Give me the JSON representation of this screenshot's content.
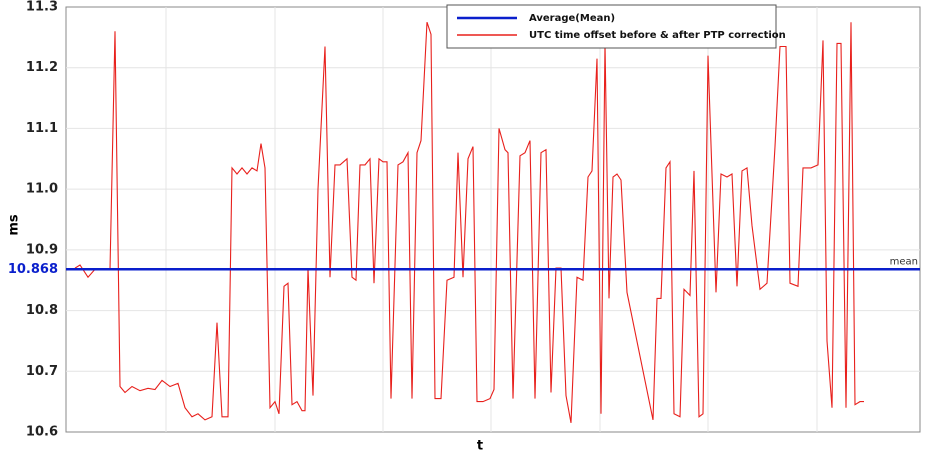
{
  "chart_data": {
    "type": "line",
    "xlabel": "t",
    "ylabel": "ms",
    "x": [
      9,
      14,
      22,
      29,
      44,
      49,
      54,
      59,
      66,
      74,
      82,
      89,
      96,
      104,
      112,
      119,
      126,
      132,
      139,
      146,
      151,
      156,
      162,
      166,
      171,
      176,
      181,
      186,
      191,
      195,
      199,
      204,
      209,
      213,
      218,
      222,
      226,
      231,
      236,
      239,
      242,
      247,
      252,
      259,
      264,
      269,
      274,
      281,
      286,
      290,
      294,
      299,
      304,
      308,
      313,
      317,
      321,
      325,
      332,
      337,
      342,
      346,
      351,
      355,
      361,
      365,
      369,
      375,
      381,
      388,
      392,
      397,
      402,
      407,
      411,
      417,
      424,
      428,
      433,
      439,
      442,
      447,
      454,
      459,
      464,
      469,
      475,
      480,
      485,
      490,
      495,
      500,
      505,
      511,
      517,
      522,
      526,
      531,
      535,
      539,
      543,
      547,
      551,
      555,
      561,
      587,
      591,
      595,
      600,
      604,
      608,
      614,
      618,
      624,
      628,
      633,
      637,
      642,
      650,
      655,
      661,
      666,
      671,
      676,
      681,
      686,
      694,
      701,
      709,
      714,
      720,
      724,
      732,
      737,
      745,
      752,
      757,
      761,
      766,
      771,
      775,
      780,
      785,
      789,
      794,
      798
    ],
    "xlim": [
      0,
      854
    ],
    "series": [
      {
        "name": "UTC time offset before & after PTP correction",
        "color": "#e8201c",
        "values": [
          10.87,
          10.875,
          10.855,
          10.868,
          10.868,
          11.26,
          10.675,
          10.665,
          10.675,
          10.668,
          10.672,
          10.67,
          10.685,
          10.675,
          10.68,
          10.64,
          10.625,
          10.63,
          10.62,
          10.625,
          10.78,
          10.625,
          10.625,
          11.035,
          11.025,
          11.035,
          11.025,
          11.035,
          11.03,
          11.075,
          11.035,
          10.64,
          10.65,
          10.63,
          10.84,
          10.845,
          10.645,
          10.65,
          10.635,
          10.635,
          10.87,
          10.66,
          11.0,
          11.235,
          10.855,
          11.04,
          11.04,
          11.05,
          10.855,
          10.85,
          11.04,
          11.04,
          11.05,
          10.845,
          11.05,
          11.045,
          11.045,
          10.655,
          11.04,
          11.045,
          11.06,
          10.655,
          11.06,
          11.08,
          11.275,
          11.255,
          10.655,
          10.655,
          10.85,
          10.855,
          11.06,
          10.855,
          11.05,
          11.07,
          10.65,
          10.65,
          10.655,
          10.67,
          11.1,
          11.065,
          11.06,
          10.655,
          11.055,
          11.06,
          11.08,
          10.655,
          11.06,
          11.065,
          10.665,
          10.87,
          10.87,
          10.66,
          10.615,
          10.855,
          10.85,
          11.02,
          11.03,
          11.215,
          10.63,
          11.24,
          10.82,
          11.02,
          11.025,
          11.015,
          10.83,
          10.62,
          10.82,
          10.82,
          11.035,
          11.045,
          10.63,
          10.625,
          10.835,
          10.825,
          11.03,
          10.625,
          10.63,
          11.22,
          10.83,
          11.025,
          11.02,
          11.025,
          10.84,
          11.03,
          11.035,
          10.94,
          10.835,
          10.845,
          11.07,
          11.235,
          11.235,
          10.845,
          10.84,
          11.035,
          11.035,
          11.04,
          11.245,
          10.75,
          10.64,
          11.24,
          11.24,
          10.64,
          11.275,
          10.645,
          10.65,
          10.65
        ]
      }
    ],
    "reference_line": {
      "name": "Average(Mean)",
      "value": 10.868,
      "color": "#0a1fcc",
      "annotation": "mean"
    },
    "ylim": [
      10.6,
      11.3
    ],
    "yticks": [
      10.6,
      10.7,
      10.8,
      10.9,
      {
        "value": 11,
        "label": "11.0"
      },
      11.1,
      11.2,
      11.3
    ],
    "grid": true,
    "legend": "top-right"
  }
}
